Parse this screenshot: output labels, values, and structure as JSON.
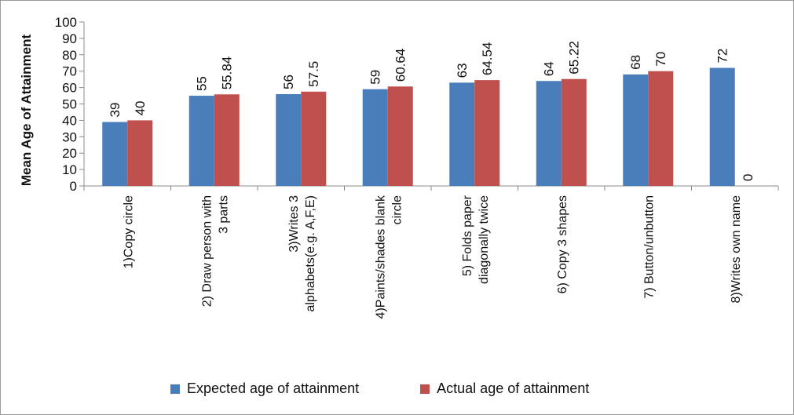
{
  "chart_data": {
    "type": "bar",
    "title": "",
    "xlabel": "",
    "ylabel": "Mean Age of Attainment",
    "ylim": [
      0,
      100
    ],
    "yticks": [
      0,
      10,
      20,
      30,
      40,
      50,
      60,
      70,
      80,
      90,
      100
    ],
    "grid": false,
    "legend_position": "bottom",
    "categories": [
      [
        "1)Copy circle"
      ],
      [
        "2) Draw person with",
        "3 parts"
      ],
      [
        "3)Writes 3",
        "alphabets(e.g. A,F,E)"
      ],
      [
        "4)Paints/shades blank",
        "circle"
      ],
      [
        "5) Folds paper",
        "diagonally twice"
      ],
      [
        "6) Copy 3 shapes"
      ],
      [
        "7) Button/unbutton"
      ],
      [
        "8)Writes own name"
      ]
    ],
    "series": [
      {
        "name": "Expected age of attainment",
        "color": "#4a7ebb",
        "values": [
          39,
          55,
          56,
          59,
          63,
          64,
          68,
          72
        ],
        "labels": [
          "39",
          "55",
          "56",
          "59",
          "63",
          "64",
          "68",
          "72"
        ]
      },
      {
        "name": "Actual age of attainment",
        "color": "#c0504d",
        "values": [
          40,
          55.84,
          57.5,
          60.64,
          64.54,
          65.22,
          70,
          0
        ],
        "labels": [
          "40",
          "55.84",
          "57.5",
          "60.64",
          "64.54",
          "65.22",
          "70",
          "0"
        ]
      }
    ]
  }
}
